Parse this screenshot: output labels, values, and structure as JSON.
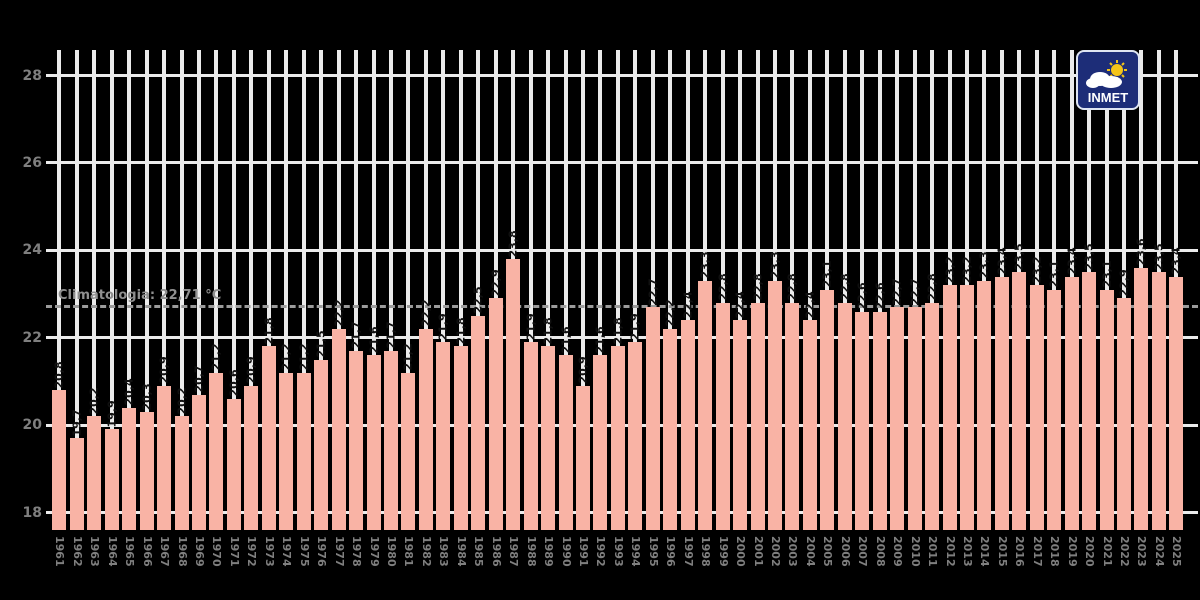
{
  "chart_data": {
    "type": "bar",
    "title": "",
    "ylabel": "",
    "xlabel": "",
    "yticks": [
      18,
      20,
      22,
      24,
      26,
      28
    ],
    "ylim": [
      17.6,
      28.7
    ],
    "grid": true,
    "legend_position": "none",
    "categories": [
      1961,
      1962,
      1963,
      1964,
      1965,
      1966,
      1967,
      1968,
      1969,
      1970,
      1971,
      1972,
      1973,
      1974,
      1975,
      1976,
      1977,
      1978,
      1979,
      1980,
      1981,
      1982,
      1983,
      1984,
      1985,
      1986,
      1987,
      1988,
      1989,
      1990,
      1991,
      1992,
      1993,
      1994,
      1995,
      1996,
      1997,
      1998,
      1999,
      2000,
      2001,
      2002,
      2003,
      2004,
      2005,
      2006,
      2007,
      2008,
      2009,
      2010,
      2011,
      2012,
      2013,
      2014,
      2015,
      2016,
      2017,
      2018,
      2019,
      2020,
      2021,
      2022,
      2023,
      2024,
      2025
    ],
    "values": [
      20.8,
      19.7,
      20.2,
      19.9,
      20.4,
      20.3,
      20.9,
      20.2,
      20.7,
      21.2,
      20.6,
      20.9,
      21.8,
      21.2,
      21.2,
      21.5,
      22.2,
      21.7,
      21.6,
      21.7,
      21.2,
      22.2,
      21.9,
      21.8,
      22.5,
      22.9,
      23.8,
      21.9,
      21.8,
      21.6,
      20.9,
      21.6,
      21.8,
      21.9,
      22.7,
      22.2,
      22.4,
      23.3,
      22.8,
      22.4,
      22.8,
      23.3,
      22.8,
      22.4,
      23.1,
      22.8,
      22.6,
      22.6,
      22.7,
      22.7,
      22.8,
      23.2,
      23.2,
      23.3,
      23.4,
      23.5,
      23.2,
      23.1,
      23.4,
      23.5,
      23.1,
      22.9,
      23.6,
      23.5,
      23.4
    ],
    "decimal_separator": ",",
    "climatology": {
      "label": "Climatologia: 22,71 °C",
      "value": 22.71
    },
    "colors": {
      "bar": "#f9b3a5",
      "grid": "#ebebeb",
      "climatology_line": "#9b9b9b",
      "climatology_text": "#8f8f8f",
      "axis_text": "#7f7f7f",
      "bar_label_text": "#111111",
      "background": "#000000"
    }
  },
  "logo": {
    "text": "INMET",
    "bg_color": "#1d2d78",
    "sun_color": "#f5c518",
    "cloud_color": "#ffffff"
  }
}
